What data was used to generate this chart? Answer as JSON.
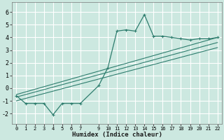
{
  "xlabel": "Humidex (Indice chaleur)",
  "ylabel": "",
  "bg_color": "#cce8e0",
  "grid_color": "#b0d8ce",
  "line_color": "#2e7d6e",
  "xlim": [
    -0.5,
    22.5
  ],
  "ylim": [
    -2.8,
    6.8
  ],
  "xticks": [
    0,
    1,
    2,
    3,
    4,
    5,
    6,
    7,
    9,
    10,
    11,
    12,
    13,
    14,
    15,
    16,
    17,
    18,
    19,
    20,
    21,
    22
  ],
  "yticks": [
    -2,
    -1,
    0,
    1,
    2,
    3,
    4,
    5,
    6
  ],
  "main_x": [
    0,
    1,
    2,
    3,
    4,
    5,
    6,
    7,
    9,
    10,
    11,
    12,
    13,
    14,
    15,
    16,
    17,
    18,
    19,
    20,
    21,
    22
  ],
  "main_y": [
    -0.6,
    -1.2,
    -1.2,
    -1.2,
    -2.1,
    -1.2,
    -1.2,
    -1.2,
    0.2,
    1.6,
    4.5,
    4.6,
    4.5,
    5.8,
    4.1,
    4.1,
    4.0,
    3.9,
    3.8,
    3.9,
    3.9,
    4.0
  ],
  "line1_x": [
    0,
    22
  ],
  "line1_y": [
    -0.5,
    4.0
  ],
  "line2_x": [
    0,
    22
  ],
  "line2_y": [
    -0.7,
    3.6
  ],
  "line3_x": [
    0,
    22
  ],
  "line3_y": [
    -1.0,
    3.2
  ]
}
